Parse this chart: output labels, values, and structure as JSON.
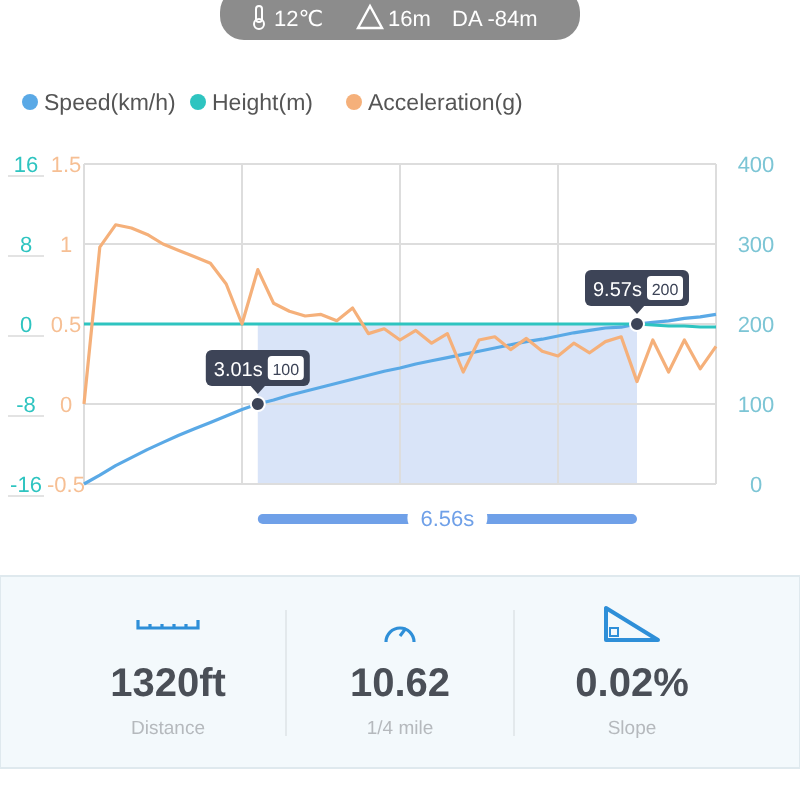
{
  "chart_data": {
    "type": "line",
    "legend": "top",
    "grid": true,
    "categories": [
      null,
      null,
      null,
      null,
      null,
      null,
      null,
      null,
      null,
      null,
      null,
      null,
      null,
      null,
      null,
      null,
      null,
      null,
      null,
      null,
      null,
      null,
      null,
      null,
      null,
      null,
      null,
      null,
      null,
      null,
      null,
      null,
      null,
      null,
      null,
      null,
      null,
      null,
      null,
      null,
      null
    ],
    "ylim": [
      -16,
      16
    ],
    "yticks": [
      -16,
      -8,
      0,
      8,
      16
    ],
    "y3lim": [
      -0.5,
      1.5
    ],
    "y3ticks": [
      -0.5,
      0,
      0.5,
      1,
      1.5
    ],
    "y2lim": [
      0,
      400
    ],
    "y2ticks": [
      0,
      100,
      200,
      300,
      400
    ],
    "series": [
      {
        "name": "Speed(km/h)",
        "color": "#5aa9e6",
        "axis": "y2",
        "values": [
          0,
          11,
          23,
          33,
          43,
          52,
          61,
          69,
          77,
          85,
          93,
          100,
          105,
          111,
          116,
          121,
          126,
          131,
          136,
          141,
          145,
          150,
          154,
          158,
          162,
          166,
          170,
          174,
          178,
          181,
          185,
          189,
          192,
          195,
          196,
          200,
          202,
          204,
          207,
          209,
          212
        ]
      },
      {
        "type": "scatter",
        "color": "#3d4457",
        "axis": "y2",
        "marker": "circle",
        "values": [
          null,
          null,
          null,
          null,
          null,
          null,
          null,
          null,
          null,
          null,
          null,
          100,
          null,
          null,
          null,
          null,
          null,
          null,
          null,
          null,
          null,
          null,
          null,
          null,
          null,
          null,
          null,
          null,
          null,
          null,
          null,
          null,
          null,
          null,
          null,
          200,
          null,
          null,
          null,
          null,
          null
        ]
      },
      {
        "name": "Height(m)",
        "color": "#2ec4c0",
        "axis": "y",
        "values": [
          0,
          0,
          0,
          0,
          0,
          0,
          0,
          0,
          0,
          0,
          0,
          0,
          0,
          0,
          0,
          0,
          0,
          0,
          0,
          0,
          0,
          0,
          0,
          0,
          0,
          0,
          0,
          0,
          0,
          0,
          0,
          0,
          0,
          0,
          0,
          0,
          -0.1,
          -0.2,
          -0.2,
          -0.3,
          -0.3
        ]
      },
      {
        "name": "Acceleration(g)",
        "color": "#f5b07a",
        "axis": "y3",
        "values": [
          0,
          0.98,
          1.12,
          1.1,
          1.06,
          1,
          0.96,
          0.92,
          0.88,
          0.75,
          0.5,
          0.84,
          0.63,
          0.58,
          0.55,
          0.56,
          0.52,
          0.6,
          0.44,
          0.47,
          0.4,
          0.46,
          0.38,
          0.44,
          0.2,
          0.4,
          0.42,
          0.34,
          0.41,
          0.33,
          0.3,
          0.38,
          0.32,
          0.39,
          0.42,
          0.14,
          0.4,
          0.2,
          0.4,
          0.22,
          0.36
        ]
      }
    ],
    "annotations": [
      "12℃",
      "16m",
      "DA -84m",
      "3.01s 100",
      "9.57s 200",
      "6.56s",
      "1320ft",
      "Distance",
      "10.62",
      "1/4 mile",
      "0.02%",
      "Slope"
    ]
  }
}
